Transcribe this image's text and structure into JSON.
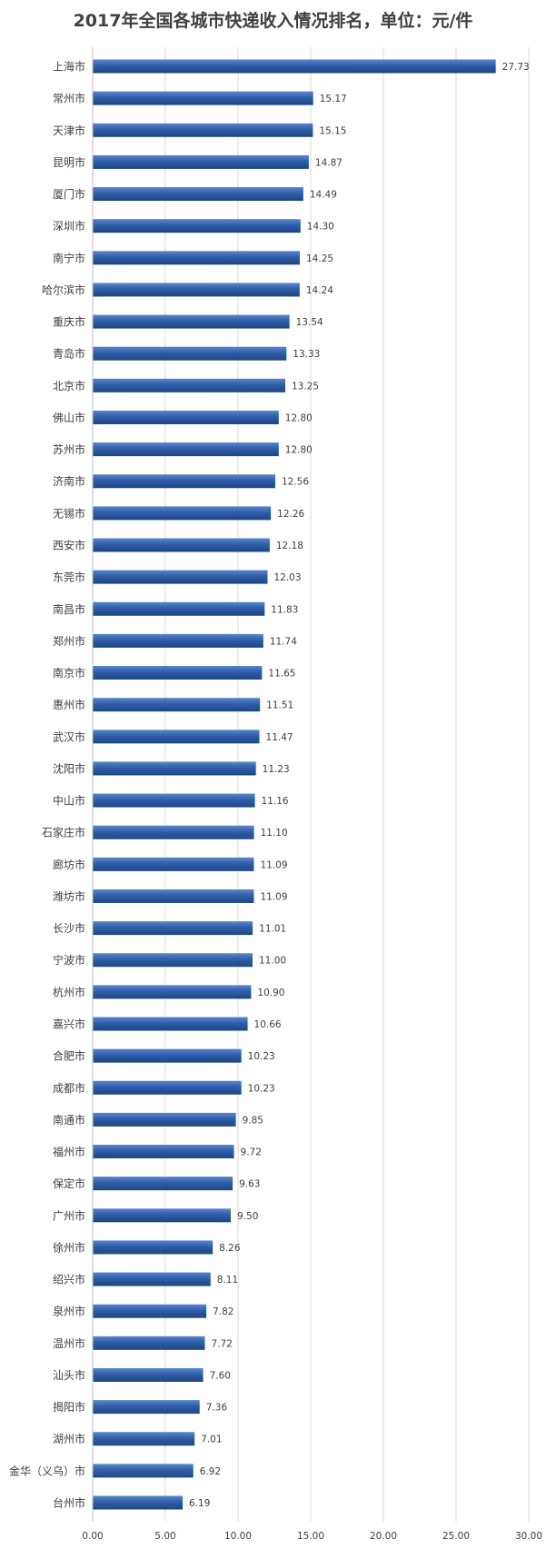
{
  "chart_data": {
    "type": "bar",
    "orientation": "horizontal",
    "title": "2017年全国各城市快递收入情况排名，单位：元/件",
    "categories": [
      "上海市",
      "常州市",
      "天津市",
      "昆明市",
      "厦门市",
      "深圳市",
      "南宁市",
      "哈尔滨市",
      "重庆市",
      "青岛市",
      "北京市",
      "佛山市",
      "苏州市",
      "济南市",
      "无锡市",
      "西安市",
      "东莞市",
      "南昌市",
      "郑州市",
      "南京市",
      "惠州市",
      "武汉市",
      "沈阳市",
      "中山市",
      "石家庄市",
      "廊坊市",
      "潍坊市",
      "长沙市",
      "宁波市",
      "杭州市",
      "嘉兴市",
      "合肥市",
      "成都市",
      "南通市",
      "福州市",
      "保定市",
      "广州市",
      "徐州市",
      "绍兴市",
      "泉州市",
      "温州市",
      "汕头市",
      "揭阳市",
      "湖州市",
      "金华（义乌）市",
      "台州市"
    ],
    "values": [
      27.73,
      15.17,
      15.15,
      14.87,
      14.49,
      14.3,
      14.25,
      14.24,
      13.54,
      13.33,
      13.25,
      12.8,
      12.8,
      12.56,
      12.26,
      12.18,
      12.03,
      11.83,
      11.74,
      11.65,
      11.51,
      11.47,
      11.23,
      11.16,
      11.1,
      11.09,
      11.09,
      11.01,
      11.0,
      10.9,
      10.66,
      10.23,
      10.23,
      9.85,
      9.72,
      9.63,
      9.5,
      8.26,
      8.11,
      7.82,
      7.72,
      7.6,
      7.36,
      7.01,
      6.92,
      6.19
    ],
    "value_labels": [
      "27.73",
      "15.17",
      "15.15",
      "14.87",
      "14.49",
      "14.30",
      "14.25",
      "14.24",
      "13.54",
      "13.33",
      "13.25",
      "12.80",
      "12.80",
      "12.56",
      "12.26",
      "12.18",
      "12.03",
      "11.83",
      "11.74",
      "11.65",
      "11.51",
      "11.47",
      "11.23",
      "11.16",
      "11.10",
      "11.09",
      "11.09",
      "11.01",
      "11.00",
      "10.90",
      "10.66",
      "10.23",
      "10.23",
      "9.85",
      "9.72",
      "9.63",
      "9.50",
      "8.26",
      "8.11",
      "7.82",
      "7.72",
      "7.60",
      "7.36",
      "7.01",
      "6.92",
      "6.19"
    ],
    "x_ticks": [
      0,
      5,
      10,
      15,
      20,
      25,
      30
    ],
    "x_tick_labels": [
      "0.00",
      "5.00",
      "10.00",
      "15.00",
      "20.00",
      "25.00",
      "30.00"
    ],
    "xlim": [
      0,
      30
    ],
    "grid": "vertical",
    "legend": "none",
    "bar_color": "#2E5EAA",
    "bar_color_light": "#5A86CC",
    "bar_color_dark": "#1F4680",
    "grid_color": "#D9D9D9",
    "label_color": "#404040"
  }
}
